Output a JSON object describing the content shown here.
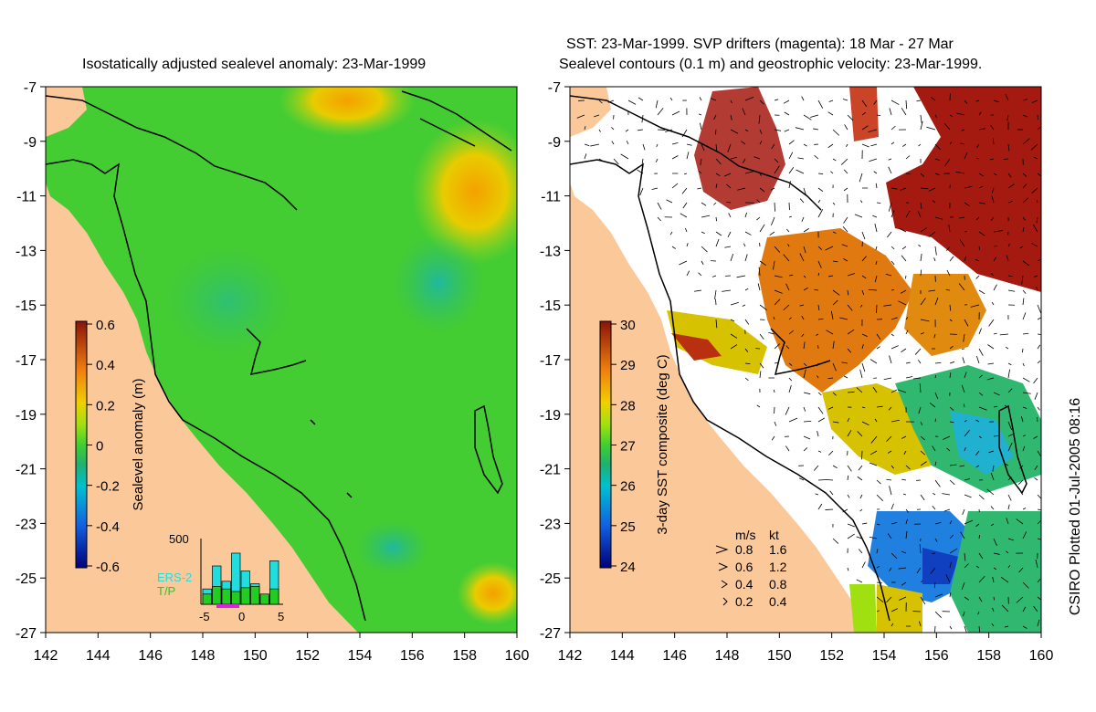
{
  "left_panel": {
    "title": "Isostatically adjusted sealevel anomaly: 23-Mar-1999",
    "colorbar": {
      "label": "Sealevel anomaly (m)",
      "ticks": [
        "0.6",
        "0.4",
        "0.2",
        "0",
        "-0.2",
        "-0.4",
        "-0.6"
      ],
      "range": [
        -0.6,
        0.6
      ]
    },
    "histogram": {
      "y_max_label": "500",
      "x_ticks": [
        "-5",
        "0",
        "5"
      ],
      "legend": [
        "ERS-2",
        "T/P"
      ],
      "legend_colors": [
        "#22dddd",
        "#22cc22"
      ],
      "bins_ers2": [
        120,
        300,
        180,
        400,
        260,
        160,
        60,
        340
      ],
      "bins_tp": [
        80,
        140,
        120,
        100,
        130,
        140,
        80,
        120
      ]
    }
  },
  "right_panel": {
    "title_line1": "SST: 23-Mar-1999. SVP drifters (magenta): 18 Mar - 27 Mar",
    "title_line2": "Sealevel contours (0.1 m) and geostrophic velocity: 23-Mar-1999.",
    "colorbar": {
      "label": "3-day SST composite (deg C)",
      "ticks": [
        "30",
        "29",
        "28",
        "27",
        "26",
        "25",
        "24"
      ],
      "range": [
        24,
        30
      ]
    },
    "velocity_legend": {
      "header_ms": "m/s",
      "header_kt": "kt",
      "rows": [
        {
          "ms": "0.8",
          "kt": "1.6"
        },
        {
          "ms": "0.6",
          "kt": "1.2"
        },
        {
          "ms": "0.4",
          "kt": "0.8"
        },
        {
          "ms": "0.2",
          "kt": "0.4"
        }
      ]
    }
  },
  "axes": {
    "y_ticks": [
      "-7",
      "-9",
      "-11",
      "-13",
      "-15",
      "-17",
      "-19",
      "-21",
      "-23",
      "-25",
      "-27"
    ],
    "x_ticks": [
      "142",
      "144",
      "146",
      "148",
      "150",
      "152",
      "154",
      "156",
      "158",
      "160"
    ],
    "lat_range": [
      -27,
      -7
    ],
    "lon_range": [
      142,
      160
    ]
  },
  "credit": "CSIRO Plotted 01-Jul-2005 08:16",
  "colors": {
    "land": "#fbc89a",
    "sea_green": "#44cc33",
    "sea_deep": "#22b066",
    "warm": "#f2b000",
    "sst_hot": "#a51a10",
    "sst_orange": "#e07a10",
    "sst_yellow": "#d6c200"
  }
}
